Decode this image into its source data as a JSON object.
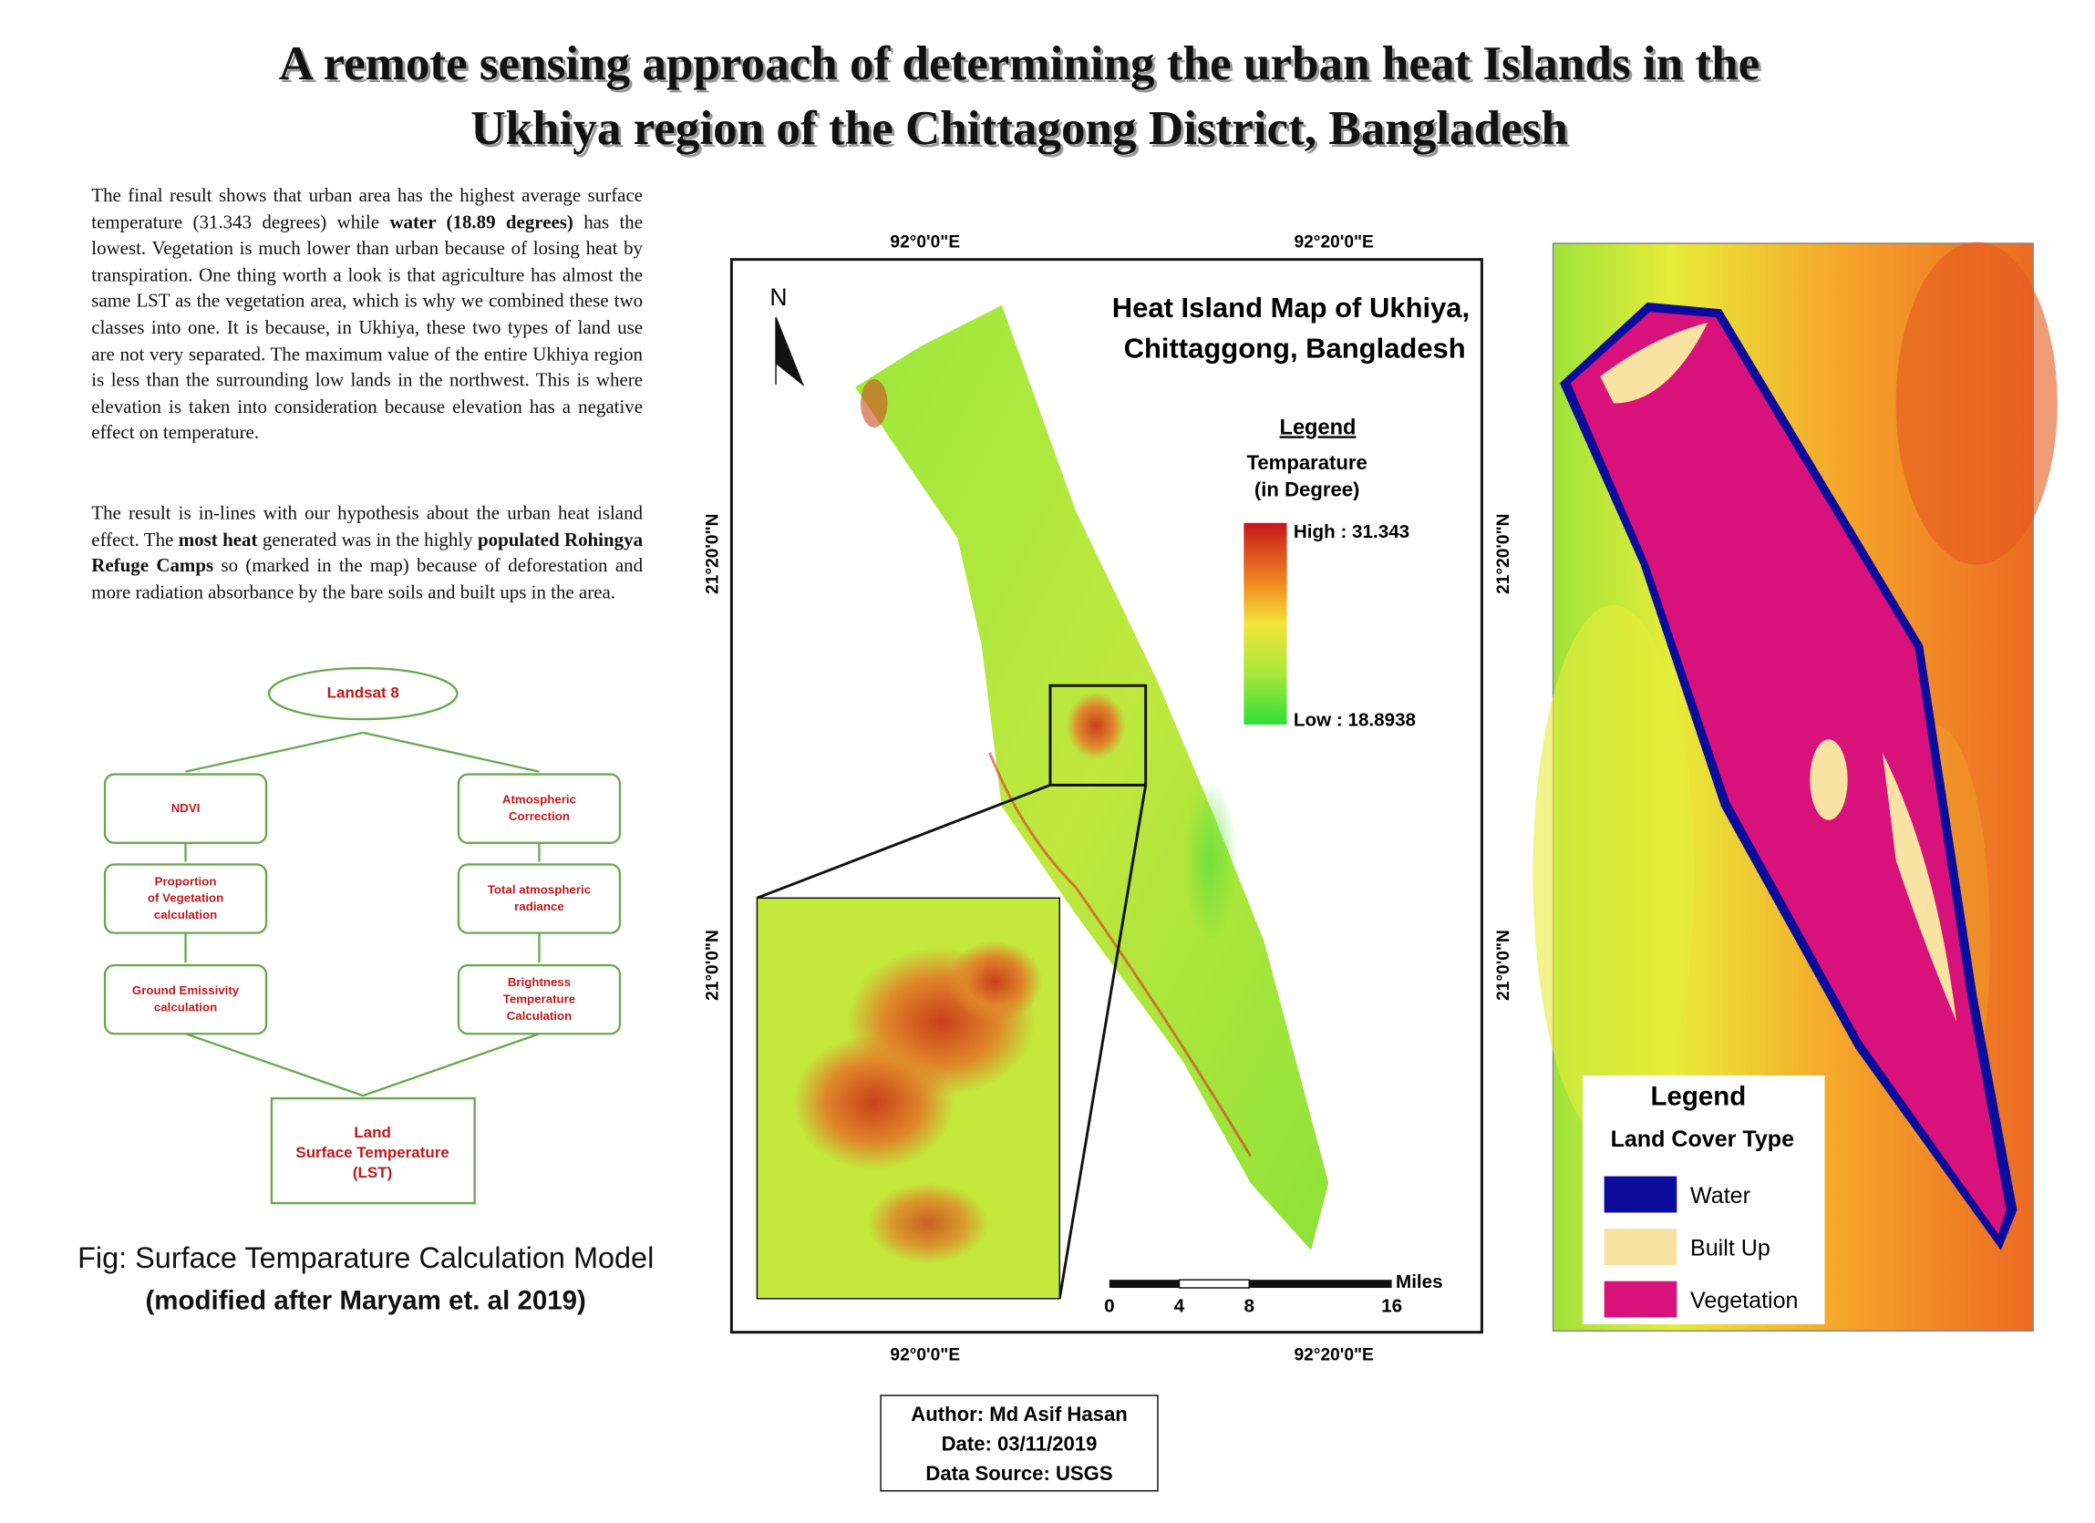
{
  "title": [
    "A remote sensing approach of determining the urban heat Islands in the",
    "Ukhiya region of the Chittagong District, Bangladesh"
  ],
  "body": {
    "paragraphs": [
      [
        {
          "text": "The final result shows that urban area has the highest average surface temperature (31.343 degrees) while ",
          "bold": false
        },
        {
          "text": "water (18.89 degrees)",
          "bold": true
        },
        {
          "text": " has the lowest. Vegetation is much lower than urban because of losing heat by transpiration. One thing worth a look is that agriculture has almost the same LST as the vegetation area, which is why we combined these two classes into one. It is because, in Ukhiya, these two types of land use are not very separated. The maximum value of the entire Ukhiya region is less than the surrounding low lands in the northwest. This is where elevation is taken into consideration because elevation has a negative effect on temperature.",
          "bold": false
        }
      ],
      [
        {
          "text": "The result is in-lines with our hypothesis about the urban heat island effect. The ",
          "bold": false
        },
        {
          "text": "most heat",
          "bold": true
        },
        {
          "text": " generated was in the highly ",
          "bold": false
        },
        {
          "text": "populated Rohingya Refuge Camps",
          "bold": true
        },
        {
          "text": " so (marked in the map) because of deforestation and more radiation absorbance by the bare soils and built ups in the area.",
          "bold": false
        }
      ]
    ]
  },
  "flowchart": {
    "nodes": [
      {
        "lines": [
          "Landsat 8"
        ]
      },
      {
        "lines": [
          "NDVI"
        ]
      },
      {
        "lines": [
          "Atmospheric",
          "Correction"
        ]
      },
      {
        "lines": [
          "Proportion",
          "of Vegetation",
          "calculation"
        ]
      },
      {
        "lines": [
          "Total atmospheric",
          "radiance"
        ]
      },
      {
        "lines": [
          "Ground Emissivity",
          "calculation"
        ]
      },
      {
        "lines": [
          "Brightness",
          "Temperature",
          "Calculation"
        ]
      },
      {
        "lines": [
          "Land",
          "Surface Temperature",
          "(LST)"
        ]
      }
    ],
    "caption": [
      "Fig: Surface Temparature Calculation Model",
      "(modified after Maryam et. al 2019)"
    ]
  },
  "heat_map": {
    "title": [
      "Heat Island Map of Ukhiya,",
      "Chittaggong, Bangladesh"
    ],
    "north": "N",
    "longitudes": [
      "92°0'0\"E",
      "92°20'0\"E"
    ],
    "latitudes": [
      "21°20'0\"N",
      "21°0'0\"N"
    ],
    "legend": {
      "title": "Legend",
      "subtitle": [
        "Temparature",
        "(in Degree)"
      ],
      "high": "High : 31.343",
      "low": "Low : 18.8938"
    },
    "scale_bar": {
      "ticks": [
        "0",
        "4",
        "8",
        "16"
      ],
      "unit": "Miles"
    }
  },
  "landcover_map": {
    "legend": {
      "title": "Legend",
      "subtitle": "Land Cover Type",
      "entries": [
        {
          "name": "Water",
          "color": "#0b0b9c"
        },
        {
          "name": "Built Up",
          "color": "#f9e3a3"
        },
        {
          "name": "Vegetation",
          "color": "#d8127a"
        }
      ]
    }
  },
  "credits": [
    "Author: Md Asif Hasan",
    "Date: 03/11/2019",
    "Data Source: USGS"
  ]
}
